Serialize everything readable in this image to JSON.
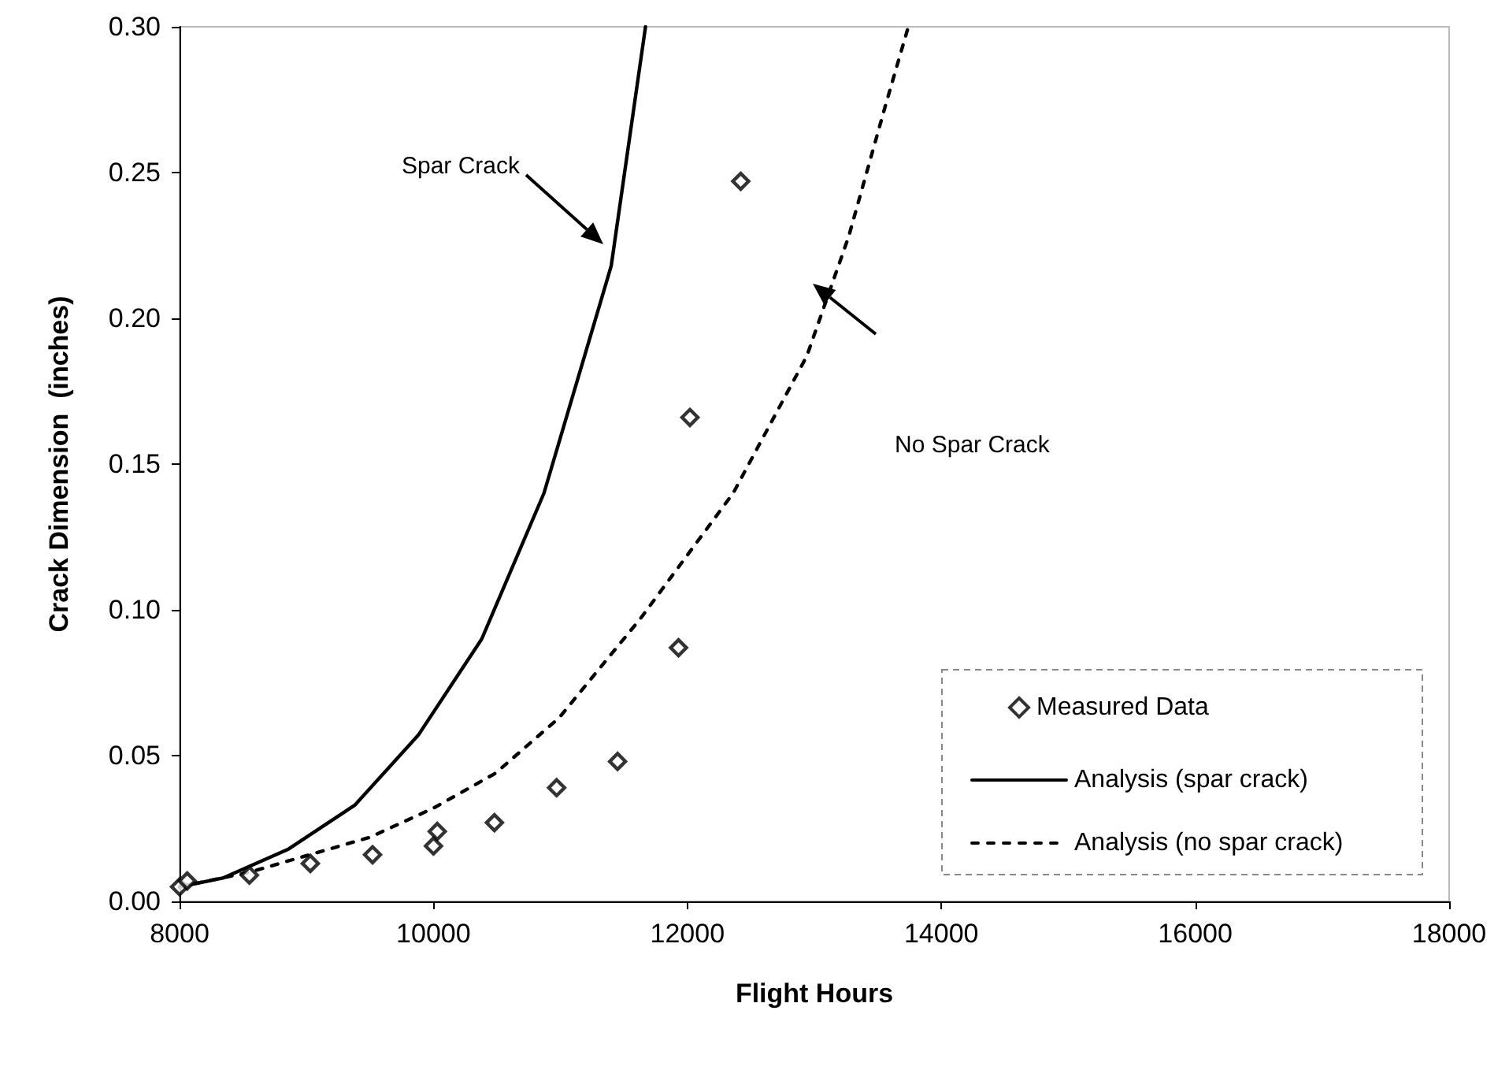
{
  "chart_data": {
    "type": "line",
    "xlabel": "Flight Hours",
    "ylabel": "Crack Dimension  (inches)",
    "xlim": [
      8000,
      18000
    ],
    "xticks": [
      8000,
      10000,
      12000,
      14000,
      16000,
      18000
    ],
    "ylim": [
      0,
      0.3
    ],
    "yticks": [
      {
        "value": 0,
        "label": "0.00"
      },
      {
        "value": 0.05,
        "label": "0.05"
      },
      {
        "value": 0.1,
        "label": "0.10"
      },
      {
        "value": 0.15,
        "label": "0.15"
      },
      {
        "value": 0.2,
        "label": "0.20"
      },
      {
        "value": 0.25,
        "label": "0.25"
      },
      {
        "value": 0.3,
        "label": "0.30"
      }
    ],
    "grid": false,
    "legend": "bottom right",
    "series": [
      {
        "name": "Measured Data",
        "type": "scatter",
        "marker": "diamond",
        "color": "#000000",
        "x": [
          8000,
          8060,
          8550,
          9030,
          9520,
          10000,
          10030,
          10480,
          10970,
          11450,
          11930,
          12020,
          12420
        ],
        "values": [
          0.005,
          0.007,
          0.009,
          0.013,
          0.016,
          0.019,
          0.024,
          0.027,
          0.039,
          0.048,
          0.087,
          0.166,
          0.247
        ]
      },
      {
        "name": "Analysis (spar crack)",
        "marker": "none",
        "line_style": "solid",
        "color": "#000000",
        "x": [
          8000,
          8340,
          8860,
          9380,
          9880,
          10380,
          10870,
          11400,
          11670
        ],
        "values": [
          0.005,
          0.008,
          0.018,
          0.033,
          0.057,
          0.09,
          0.14,
          0.218,
          0.3
        ]
      },
      {
        "name": "Analysis (no spar crack)",
        "marker": "none",
        "line_style": "dashed",
        "color": "#000000",
        "x": [
          8000,
          8550,
          9500,
          10000,
          10490,
          10990,
          11630,
          12360,
          12940,
          13270,
          13560,
          13740
        ],
        "values": [
          0.005,
          0.01,
          0.022,
          0.032,
          0.044,
          0.063,
          0.097,
          0.14,
          0.187,
          0.228,
          0.273,
          0.3
        ]
      }
    ],
    "annotations": [
      "Spar Crack",
      "No Spar Crack"
    ]
  }
}
